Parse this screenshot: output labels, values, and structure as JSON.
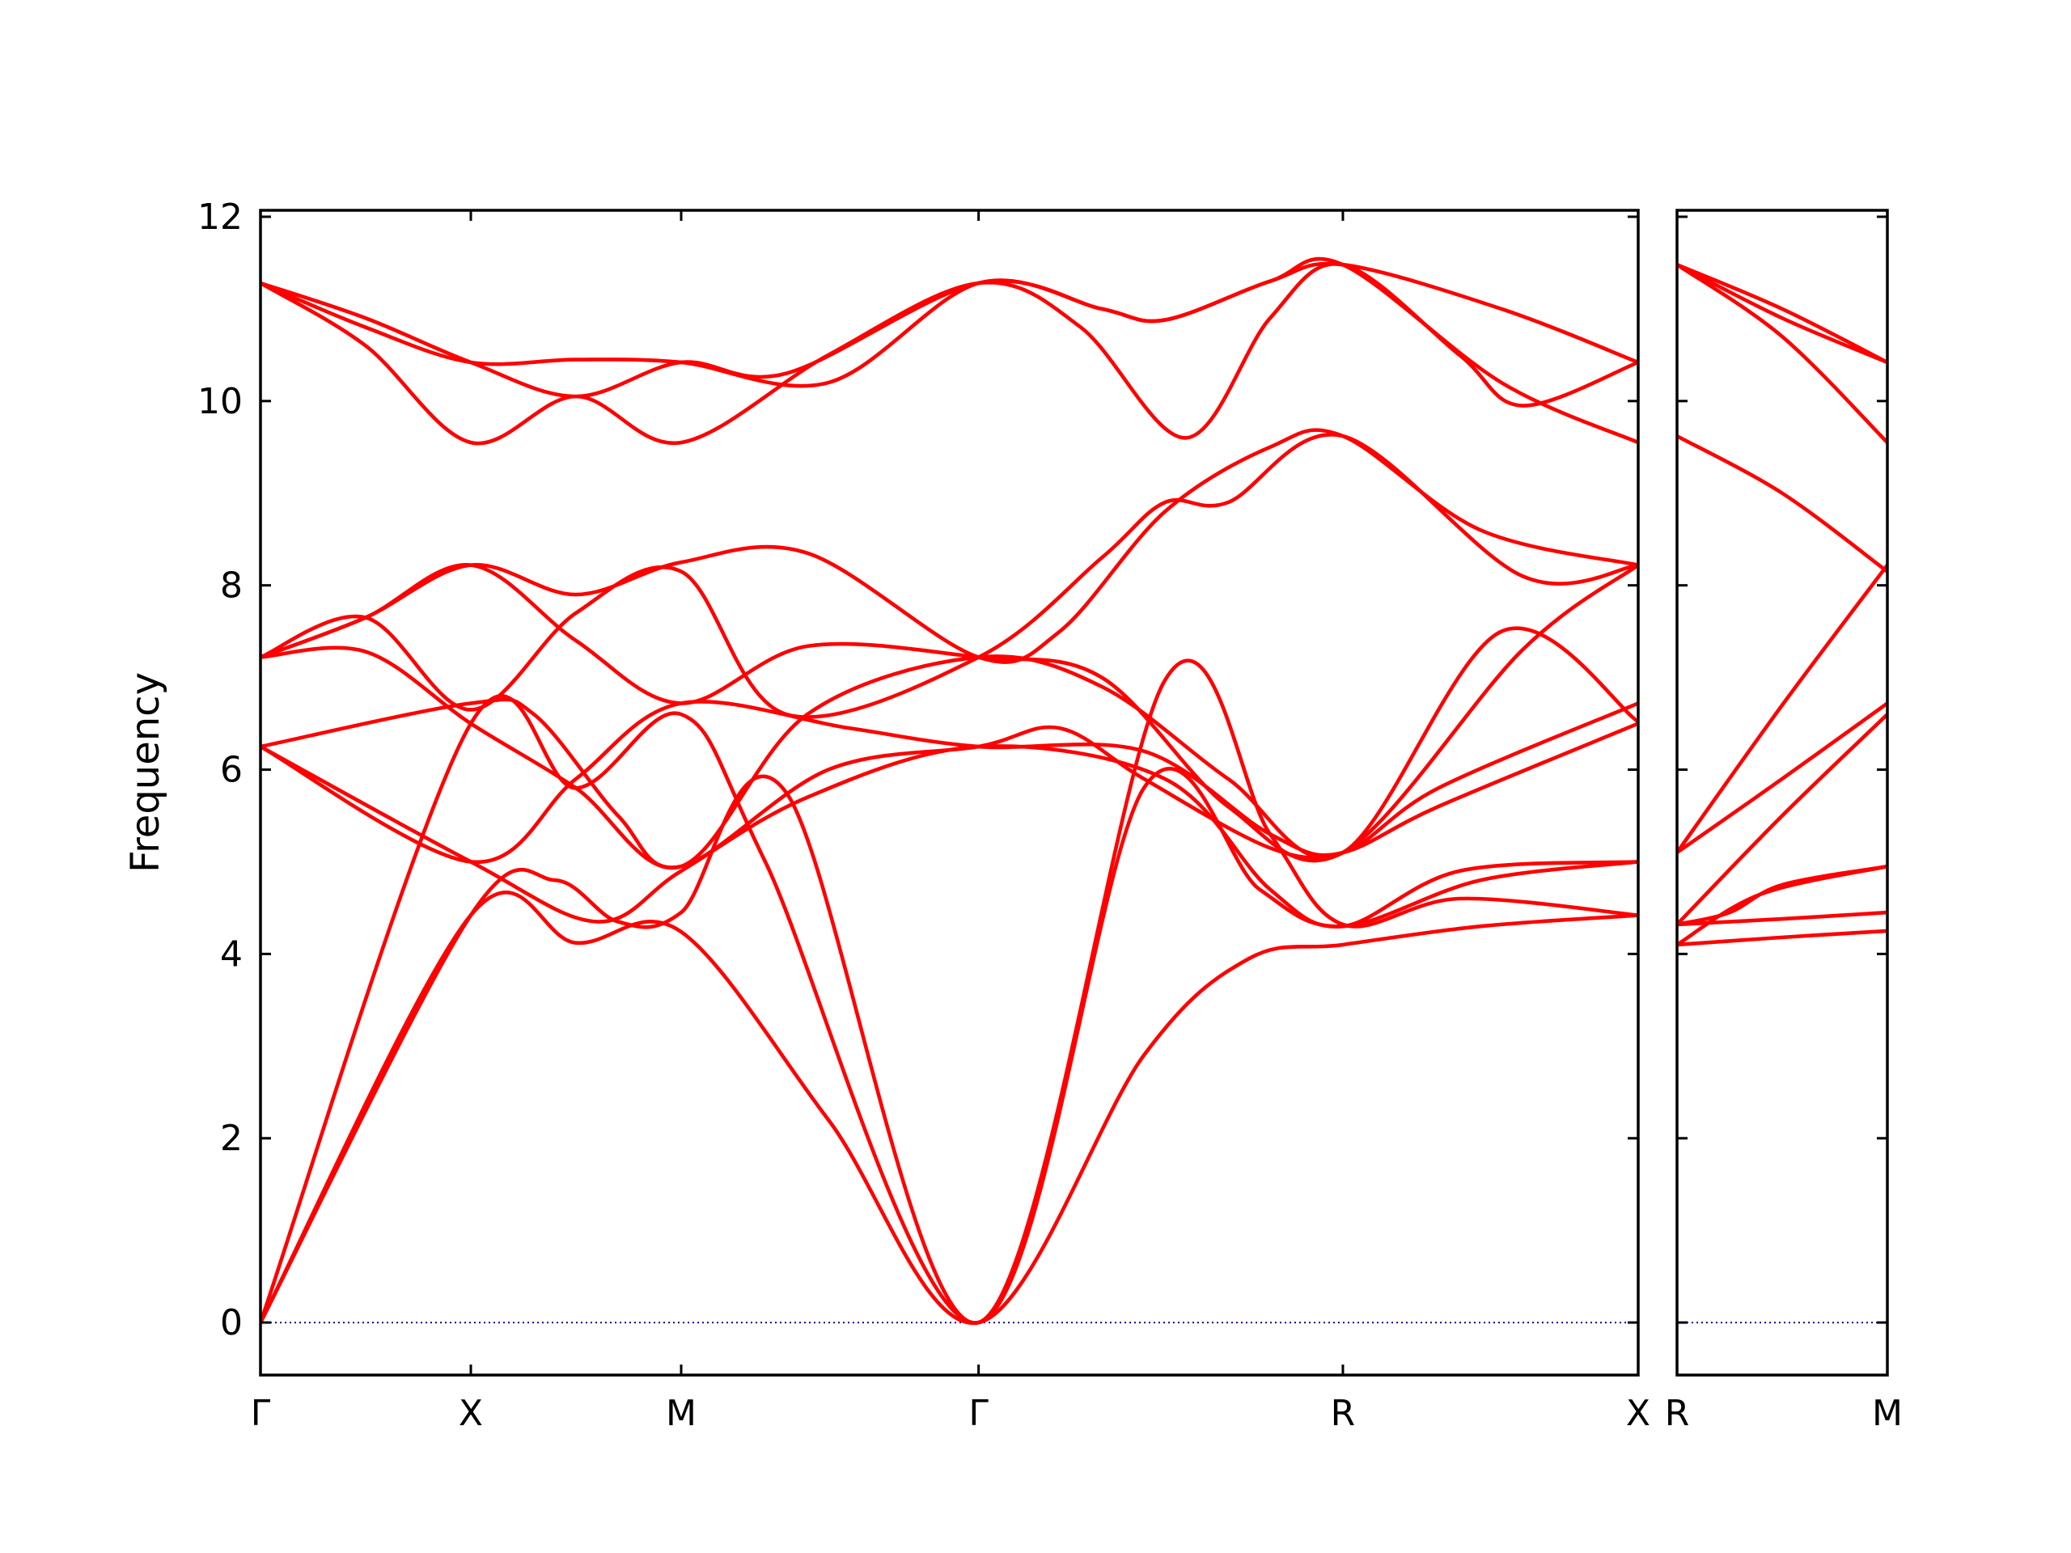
{
  "chart_data": {
    "type": "line",
    "ylabel": "Frequency",
    "ylim": [
      -0.57,
      12.07
    ],
    "yticks": [
      0,
      2,
      4,
      6,
      8,
      10,
      12
    ],
    "grid": false,
    "legend": "none",
    "colors": {
      "bands": "#ff0000",
      "zero_line": "#0000aa",
      "axes": "#000000"
    },
    "panels": [
      {
        "name": "main-panel",
        "xlim": [
          0,
          6.55
        ],
        "xticks": [
          {
            "label": "Γ",
            "x": 0
          },
          {
            "label": "X",
            "x": 1.0
          },
          {
            "label": "M",
            "x": 2.0
          },
          {
            "label": "Γ",
            "x": 3.414
          },
          {
            "label": "R",
            "x": 5.146
          },
          {
            "label": "X",
            "x": 6.55
          }
        ],
        "series": [
          {
            "x": [
              0,
              1.0,
              1.5,
              2.0,
              2.7,
              3.414,
              4.2,
              4.7,
              5.146,
              5.8,
              6.55
            ],
            "y": [
              0,
              4.42,
              4.12,
              4.24,
              2.2,
              0,
              2.9,
              3.95,
              4.1,
              4.3,
              4.42
            ]
          },
          {
            "x": [
              0,
              1.0,
              1.4,
              1.7,
              2.0,
              2.5,
              3.414,
              4.3,
              4.8,
              5.146,
              5.7,
              6.55
            ],
            "y": [
              0,
              4.42,
              4.8,
              4.35,
              4.45,
              5.75,
              0,
              6.97,
              5.3,
              4.32,
              4.6,
              4.42
            ]
          },
          {
            "x": [
              0,
              1.0,
              1.5,
              2.0,
              2.4,
              3.414,
              4.2,
              4.75,
              5.146,
              5.8,
              6.55
            ],
            "y": [
              0,
              6.5,
              5.8,
              6.6,
              5.0,
              0,
              5.8,
              4.7,
              4.3,
              4.8,
              5.0
            ]
          },
          {
            "x": [
              0,
              1.0,
              1.6,
              2.0,
              2.6,
              3.414,
              4.3,
              4.8,
              5.146,
              5.7,
              6.55
            ],
            "y": [
              6.25,
              5.0,
              4.35,
              4.9,
              5.7,
              6.25,
              5.9,
              4.7,
              4.3,
              4.9,
              5.0
            ]
          },
          {
            "x": [
              0,
              1.0,
              1.5,
              2.0,
              2.8,
              3.414,
              4.2,
              4.8,
              5.146,
              5.6,
              6.55
            ],
            "y": [
              6.25,
              5.0,
              5.9,
              6.72,
              6.45,
              6.25,
              6.2,
              5.3,
              5.1,
              5.8,
              6.72
            ]
          },
          {
            "x": [
              0,
              1.0,
              1.3,
              1.7,
              2.0,
              2.7,
              3.414,
              3.8,
              4.2,
              4.8,
              5.146,
              5.6,
              6.55
            ],
            "y": [
              6.25,
              6.72,
              6.6,
              5.5,
              4.95,
              6.0,
              6.25,
              6.45,
              5.9,
              5.15,
              5.1,
              5.6,
              6.5
            ]
          },
          {
            "x": [
              0,
              0.5,
              1.0,
              1.5,
              2.0,
              2.6,
              3.414,
              4.0,
              4.6,
              5.146,
              5.9,
              6.55
            ],
            "y": [
              7.22,
              7.28,
              6.5,
              5.8,
              4.95,
              6.6,
              7.22,
              6.9,
              5.9,
              5.1,
              7.5,
              6.52
            ]
          },
          {
            "x": [
              0,
              0.5,
              1.0,
              1.5,
              2.0,
              2.6,
              3.414,
              4.0,
              4.6,
              5.146,
              6.0,
              6.55
            ],
            "y": [
              7.22,
              7.65,
              8.22,
              7.4,
              6.72,
              7.34,
              7.22,
              7.0,
              5.6,
              5.1,
              7.3,
              8.22
            ]
          },
          {
            "x": [
              0,
              0.5,
              1.0,
              1.5,
              2.0,
              2.5,
              3.414,
              4.0,
              4.3,
              4.6,
              5.146,
              6.0,
              6.55
            ],
            "y": [
              7.22,
              7.65,
              6.65,
              7.7,
              8.15,
              6.6,
              7.22,
              8.3,
              8.9,
              8.9,
              9.62,
              8.1,
              8.22
            ]
          },
          {
            "x": [
              0,
              0.5,
              1.0,
              1.5,
              2.0,
              2.6,
              3.414,
              3.8,
              4.3,
              4.8,
              5.146,
              5.8,
              6.55
            ],
            "y": [
              7.22,
              7.65,
              8.22,
              7.9,
              8.25,
              8.35,
              7.22,
              7.5,
              8.8,
              9.5,
              9.62,
              8.6,
              8.22
            ]
          },
          {
            "x": [
              0,
              0.5,
              1.0,
              1.5,
              2.0,
              2.7,
              3.414,
              3.9,
              4.4,
              4.8,
              5.146,
              5.7,
              6.0,
              6.55
            ],
            "y": [
              11.28,
              10.6,
              9.55,
              10.05,
              9.55,
              10.5,
              11.28,
              10.8,
              9.6,
              10.9,
              11.48,
              10.5,
              9.95,
              10.42
            ]
          },
          {
            "x": [
              0,
              0.5,
              1.0,
              1.5,
              2.0,
              2.7,
              3.414,
              4.0,
              4.3,
              4.8,
              5.146,
              5.9,
              6.55
            ],
            "y": [
              11.28,
              10.8,
              10.42,
              10.45,
              10.42,
              10.2,
              11.28,
              11.0,
              10.88,
              11.3,
              11.48,
              10.2,
              9.55
            ]
          },
          {
            "x": [
              0,
              0.5,
              1.0,
              1.5,
              2.0,
              2.5,
              3.414,
              4.0,
              4.3,
              4.8,
              5.146,
              5.9,
              6.55
            ],
            "y": [
              11.28,
              10.9,
              10.42,
              10.05,
              10.42,
              10.3,
              11.28,
              11.0,
              10.88,
              11.3,
              11.48,
              11.0,
              10.42
            ]
          }
        ]
      },
      {
        "name": "side-panel",
        "xlim": [
          0,
          1.0
        ],
        "xticks": [
          {
            "label": "R",
            "x": 0
          },
          {
            "label": "M",
            "x": 1.0
          }
        ],
        "series": [
          {
            "x": [
              0,
              0.5,
              1.0
            ],
            "y": [
              4.1,
              4.18,
              4.25
            ]
          },
          {
            "x": [
              0,
              0.5,
              1.0
            ],
            "y": [
              4.32,
              4.38,
              4.45
            ]
          },
          {
            "x": [
              0,
              0.4,
              1.0
            ],
            "y": [
              4.1,
              4.65,
              4.95
            ]
          },
          {
            "x": [
              0,
              0.25,
              0.5,
              1.0
            ],
            "y": [
              4.32,
              4.45,
              4.75,
              4.95
            ]
          },
          {
            "x": [
              0,
              0.5,
              1.0
            ],
            "y": [
              4.32,
              5.5,
              6.6
            ]
          },
          {
            "x": [
              0,
              0.5,
              1.0
            ],
            "y": [
              5.1,
              5.9,
              6.72
            ]
          },
          {
            "x": [
              0,
              0.5,
              1.0
            ],
            "y": [
              5.1,
              6.7,
              8.22
            ]
          },
          {
            "x": [
              0,
              0.5,
              1.0
            ],
            "y": [
              9.62,
              9.0,
              8.15
            ]
          },
          {
            "x": [
              0,
              0.5,
              1.0
            ],
            "y": [
              11.48,
              10.7,
              9.55
            ]
          },
          {
            "x": [
              0,
              0.5,
              1.0
            ],
            "y": [
              11.48,
              10.9,
              10.42
            ]
          },
          {
            "x": [
              0,
              0.5,
              1.0
            ],
            "y": [
              11.48,
              11.0,
              10.42
            ]
          }
        ]
      }
    ]
  }
}
